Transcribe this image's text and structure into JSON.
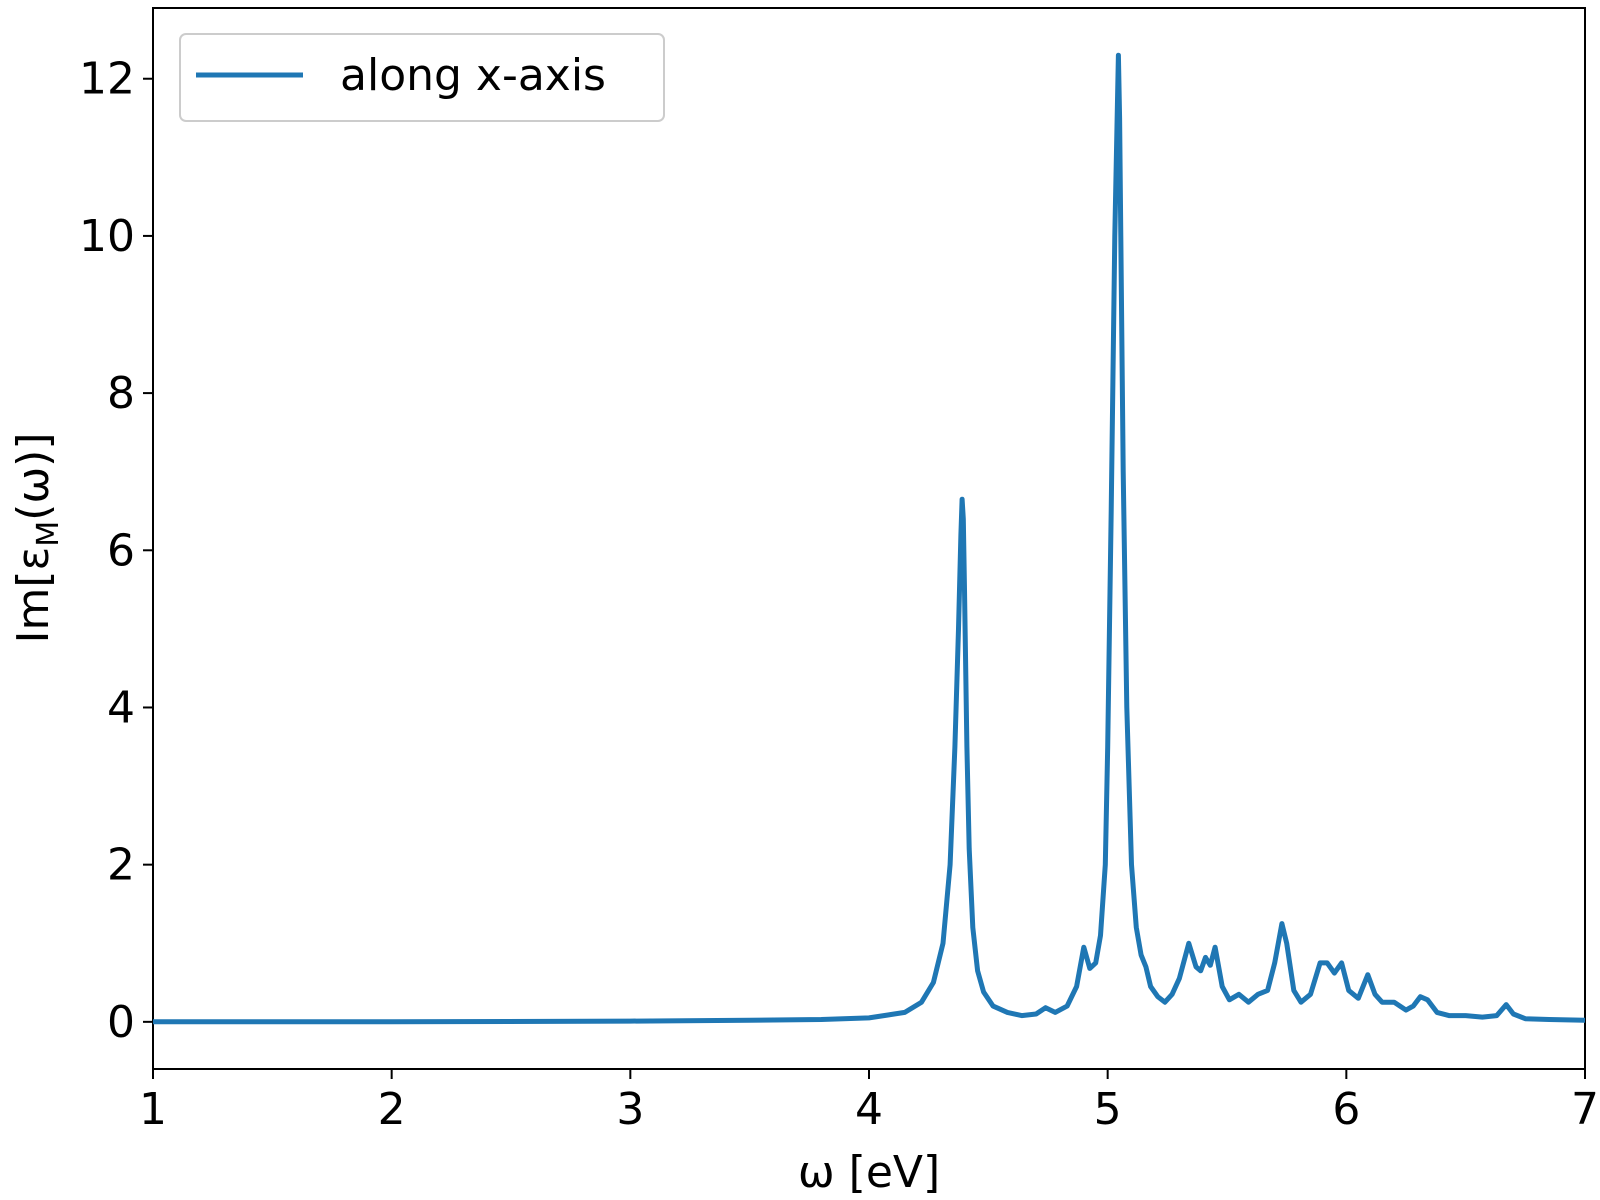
{
  "chart_data": {
    "type": "line",
    "xlabel": "ω [eV]",
    "ylabel": "Im[ε",
    "ylabel_sub": "M",
    "ylabel_end": "(ω)]",
    "xlim": [
      1,
      7
    ],
    "ylim": [
      -0.6,
      12.9
    ],
    "xticks": [
      1,
      2,
      3,
      4,
      5,
      6,
      7
    ],
    "yticks": [
      0,
      2,
      4,
      6,
      8,
      10,
      12
    ],
    "grid": false,
    "legend_position": "top-left",
    "series": [
      {
        "name": "along x-axis",
        "color": "#1f77b4",
        "x": [
          1.0,
          2.0,
          3.0,
          3.5,
          3.8,
          4.0,
          4.15,
          4.22,
          4.27,
          4.31,
          4.34,
          4.36,
          4.375,
          4.385,
          4.39,
          4.395,
          4.4,
          4.41,
          4.42,
          4.435,
          4.455,
          4.48,
          4.52,
          4.58,
          4.64,
          4.7,
          4.74,
          4.78,
          4.83,
          4.87,
          4.9,
          4.925,
          4.95,
          4.97,
          4.99,
          5.0,
          5.015,
          5.03,
          5.045,
          5.05,
          5.055,
          5.065,
          5.08,
          5.1,
          5.12,
          5.14,
          5.16,
          5.18,
          5.21,
          5.24,
          5.27,
          5.3,
          5.34,
          5.37,
          5.39,
          5.41,
          5.43,
          5.45,
          5.48,
          5.51,
          5.55,
          5.59,
          5.63,
          5.67,
          5.7,
          5.73,
          5.75,
          5.78,
          5.81,
          5.85,
          5.89,
          5.92,
          5.95,
          5.98,
          6.01,
          6.05,
          6.09,
          6.12,
          6.15,
          6.2,
          6.25,
          6.28,
          6.31,
          6.34,
          6.38,
          6.43,
          6.5,
          6.57,
          6.63,
          6.67,
          6.7,
          6.75,
          6.85,
          7.0
        ],
        "y": [
          0.0,
          0.0,
          0.01,
          0.02,
          0.03,
          0.05,
          0.12,
          0.25,
          0.5,
          1.0,
          2.0,
          3.5,
          5.0,
          6.2,
          6.65,
          6.4,
          5.5,
          3.5,
          2.2,
          1.2,
          0.65,
          0.38,
          0.2,
          0.12,
          0.08,
          0.1,
          0.18,
          0.12,
          0.2,
          0.45,
          0.95,
          0.68,
          0.75,
          1.1,
          2.0,
          3.5,
          6.5,
          10.0,
          12.3,
          11.5,
          10.0,
          7.0,
          4.0,
          2.0,
          1.2,
          0.85,
          0.7,
          0.45,
          0.32,
          0.25,
          0.35,
          0.55,
          1.0,
          0.7,
          0.65,
          0.82,
          0.72,
          0.95,
          0.45,
          0.28,
          0.35,
          0.25,
          0.35,
          0.4,
          0.75,
          1.25,
          1.0,
          0.4,
          0.25,
          0.35,
          0.75,
          0.75,
          0.62,
          0.75,
          0.4,
          0.3,
          0.6,
          0.35,
          0.25,
          0.25,
          0.15,
          0.2,
          0.32,
          0.28,
          0.12,
          0.08,
          0.08,
          0.06,
          0.08,
          0.22,
          0.1,
          0.04,
          0.03,
          0.02
        ]
      }
    ]
  }
}
